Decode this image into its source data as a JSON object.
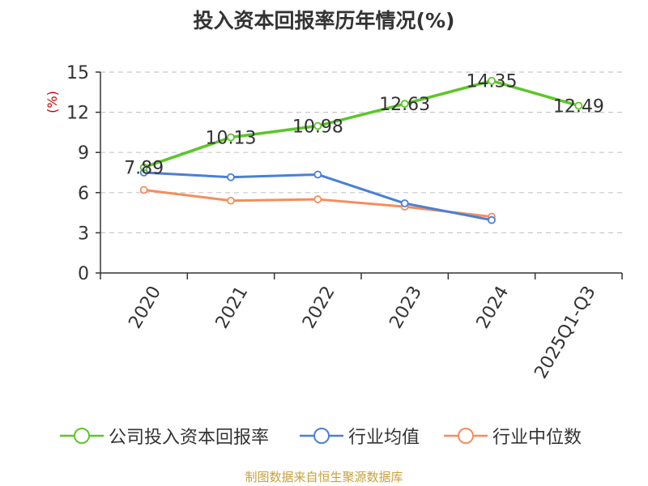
{
  "title": "投入资本回报率历年情况(%)",
  "source": "制图数据来自恒生聚源数据库",
  "chart_data": {
    "type": "line",
    "title": "投入资本回报率历年情况(%)",
    "ylabel": "(%)",
    "xlabel": "",
    "ylim": [
      0,
      15
    ],
    "yticks": [
      0,
      3,
      6,
      9,
      12,
      15
    ],
    "grid": true,
    "legend_position": "bottom",
    "categories": [
      "2020",
      "2021",
      "2022",
      "2023",
      "2024",
      "2025Q1-Q3"
    ],
    "series": [
      {
        "name": "公司投入资本回报率",
        "color": "#5cc62a",
        "values": [
          7.89,
          10.13,
          10.98,
          12.63,
          14.35,
          12.49
        ],
        "labels": [
          "7.89",
          "10.13",
          "10.98",
          "12.63",
          "14.35",
          "12.49"
        ]
      },
      {
        "name": "行业均值",
        "color": "#4a7fd6",
        "values": [
          7.5,
          7.15,
          7.35,
          5.2,
          3.95,
          null
        ]
      },
      {
        "name": "行业中位数",
        "color": "#f58d5c",
        "values": [
          6.2,
          5.4,
          5.5,
          4.95,
          4.2,
          null
        ]
      }
    ]
  }
}
